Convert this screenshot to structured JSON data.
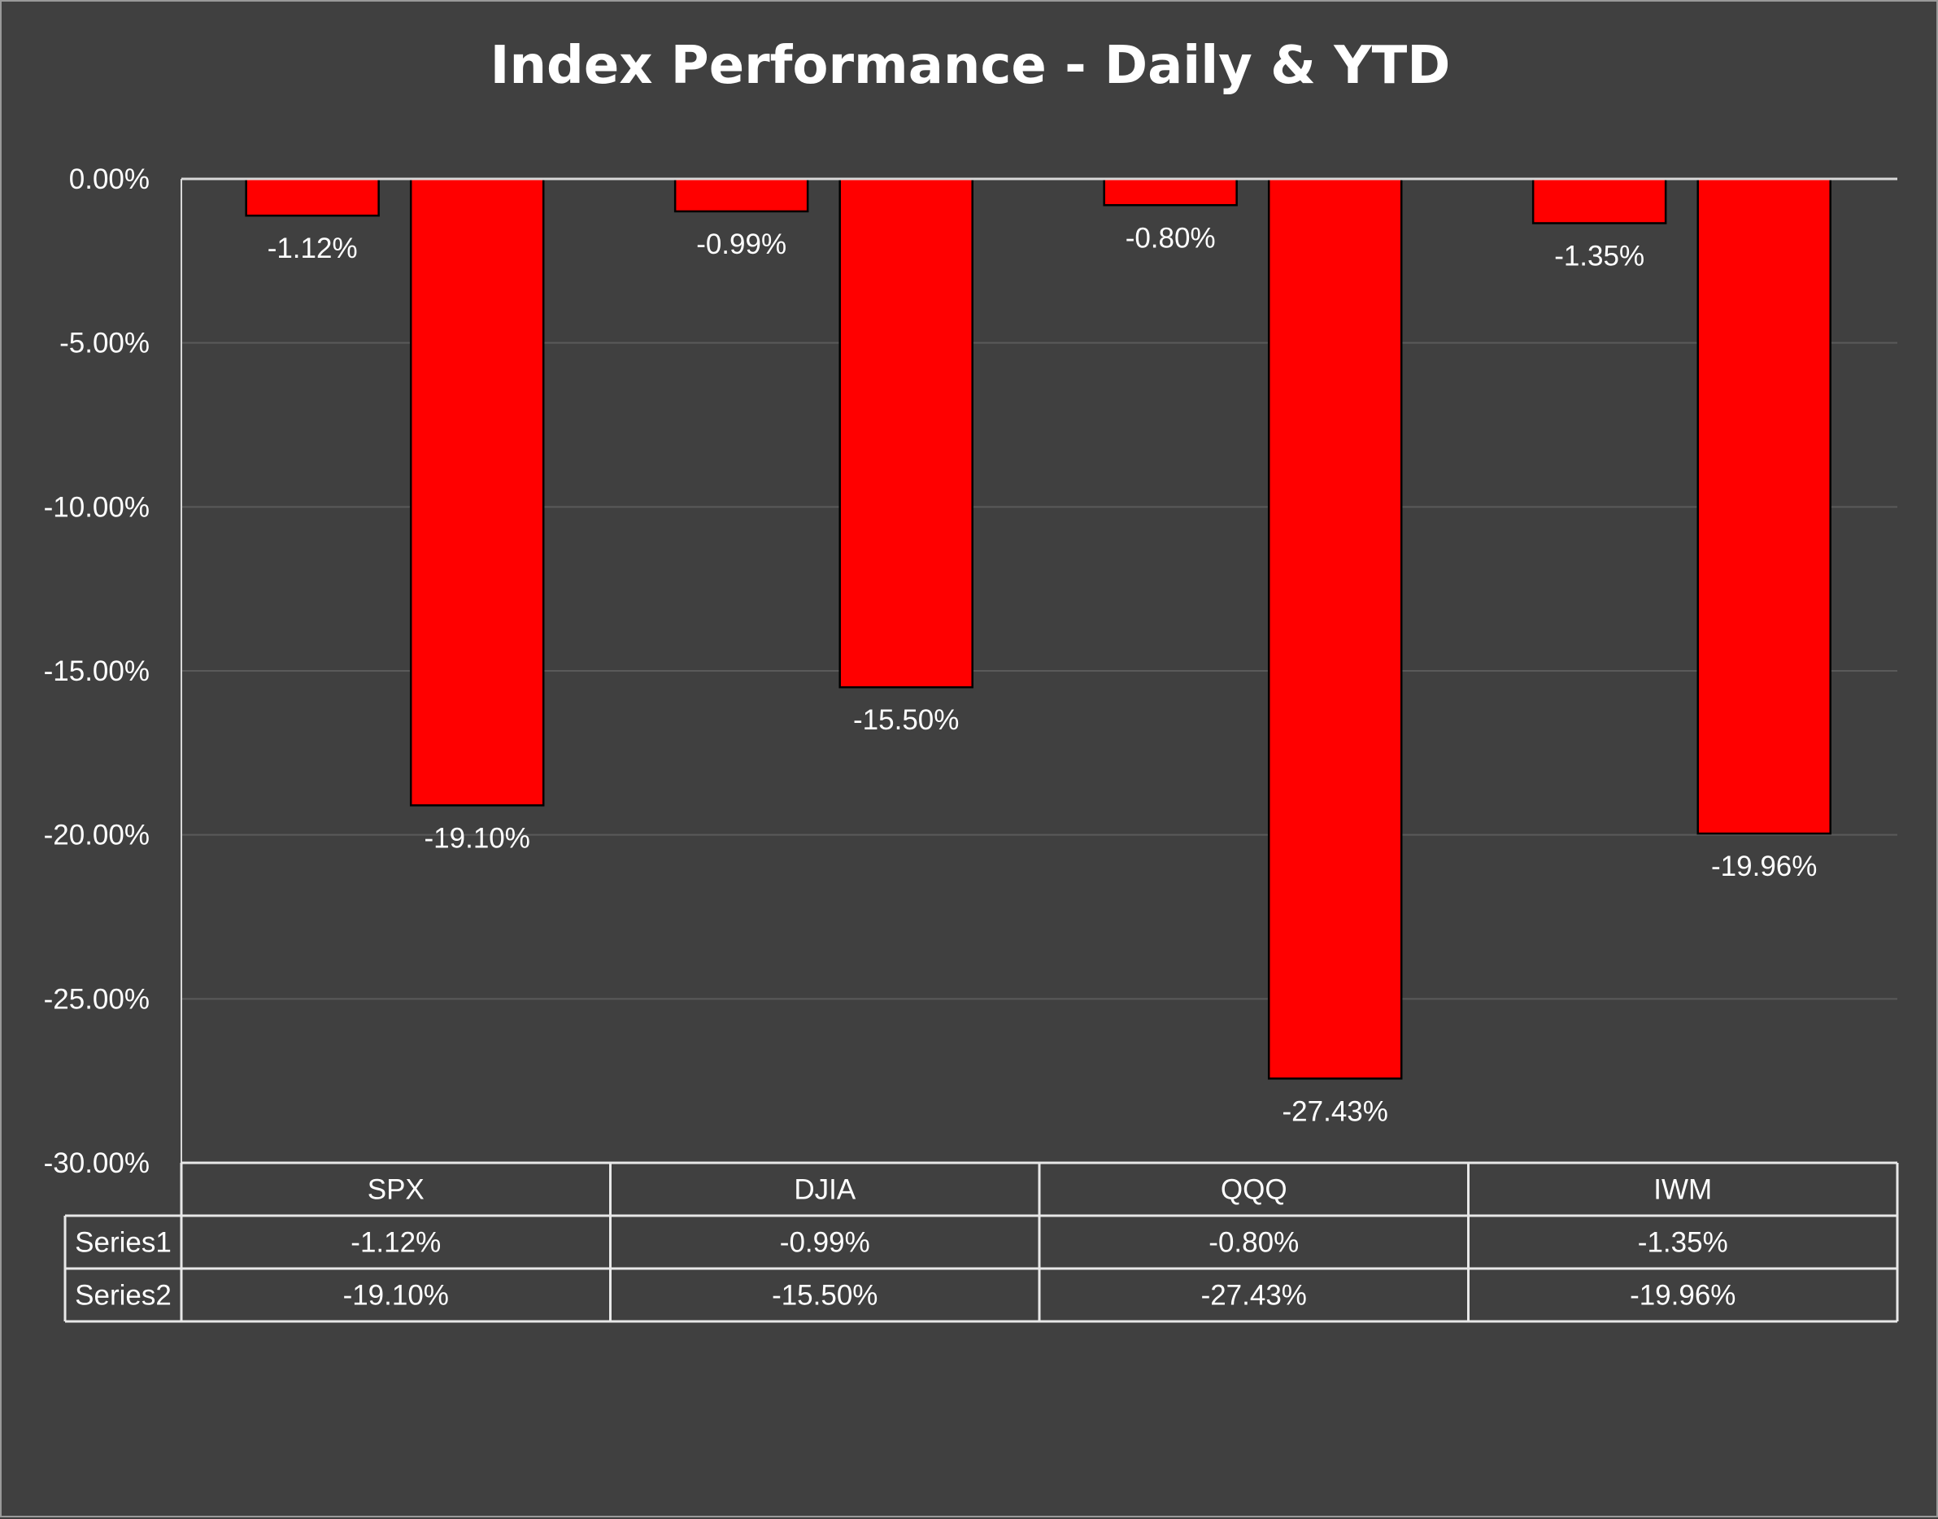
{
  "chart_data": {
    "type": "bar",
    "title": "Index Performance - Daily & YTD",
    "categories": [
      "SPX",
      "DJIA",
      "QQQ",
      "IWM"
    ],
    "series": [
      {
        "name": "Series1",
        "values": [
          -1.12,
          -0.99,
          -0.8,
          -1.35
        ],
        "labels": [
          "-1.12%",
          "-0.99%",
          "-0.80%",
          "-1.35%"
        ]
      },
      {
        "name": "Series2",
        "values": [
          -19.1,
          -15.5,
          -27.43,
          -19.96
        ],
        "labels": [
          "-19.10%",
          "-15.50%",
          "-27.43%",
          "-19.96%"
        ]
      }
    ],
    "ylim": [
      -30,
      0
    ],
    "yticks": [
      {
        "value": 0,
        "label": "0.00%"
      },
      {
        "value": -5,
        "label": "-5.00%"
      },
      {
        "value": -10,
        "label": "-10.00%"
      },
      {
        "value": -15,
        "label": "-15.00%"
      },
      {
        "value": -20,
        "label": "-20.00%"
      },
      {
        "value": -25,
        "label": "-25.00%"
      },
      {
        "value": -30,
        "label": "-30.00%"
      }
    ],
    "xlabel": "",
    "ylabel": "",
    "grid": true,
    "legend": "data-table below chart",
    "colors": {
      "background": "#404040",
      "bar_fill": "#ff0000",
      "bar_stroke": "#000000",
      "text": "#ffffff",
      "grid": "#5a5a5a",
      "axis": "#d9d9d9",
      "table_border": "#e8e8e8"
    }
  }
}
